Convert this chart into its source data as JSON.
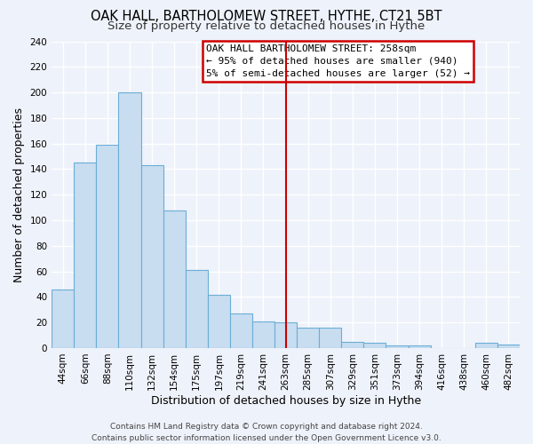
{
  "title": "OAK HALL, BARTHOLOMEW STREET, HYTHE, CT21 5BT",
  "subtitle": "Size of property relative to detached houses in Hythe",
  "xlabel": "Distribution of detached houses by size in Hythe",
  "ylabel": "Number of detached properties",
  "bar_labels": [
    "44sqm",
    "66sqm",
    "88sqm",
    "110sqm",
    "132sqm",
    "154sqm",
    "175sqm",
    "197sqm",
    "219sqm",
    "241sqm",
    "263sqm",
    "285sqm",
    "307sqm",
    "329sqm",
    "351sqm",
    "373sqm",
    "394sqm",
    "416sqm",
    "438sqm",
    "460sqm",
    "482sqm"
  ],
  "bar_values": [
    46,
    145,
    159,
    200,
    143,
    108,
    61,
    42,
    27,
    21,
    20,
    16,
    16,
    5,
    4,
    2,
    2,
    0,
    0,
    4,
    3
  ],
  "bar_color": "#c8ddf0",
  "bar_edge_color": "#6aaed6",
  "ylim": [
    0,
    240
  ],
  "yticks": [
    0,
    20,
    40,
    60,
    80,
    100,
    120,
    140,
    160,
    180,
    200,
    220,
    240
  ],
  "vline_x_index": 10,
  "vline_color": "#cc0000",
  "annotation_title": "OAK HALL BARTHOLOMEW STREET: 258sqm",
  "annotation_line1": "← 95% of detached houses are smaller (940)",
  "annotation_line2": "5% of semi-detached houses are larger (52) →",
  "footer_line1": "Contains HM Land Registry data © Crown copyright and database right 2024.",
  "footer_line2": "Contains public sector information licensed under the Open Government Licence v3.0.",
  "background_color": "#eef2fa",
  "grid_color": "#ffffff",
  "title_fontsize": 10.5,
  "subtitle_fontsize": 9.5,
  "axis_label_fontsize": 9,
  "tick_fontsize": 7.5,
  "footer_fontsize": 6.5,
  "ann_fontsize": 8
}
